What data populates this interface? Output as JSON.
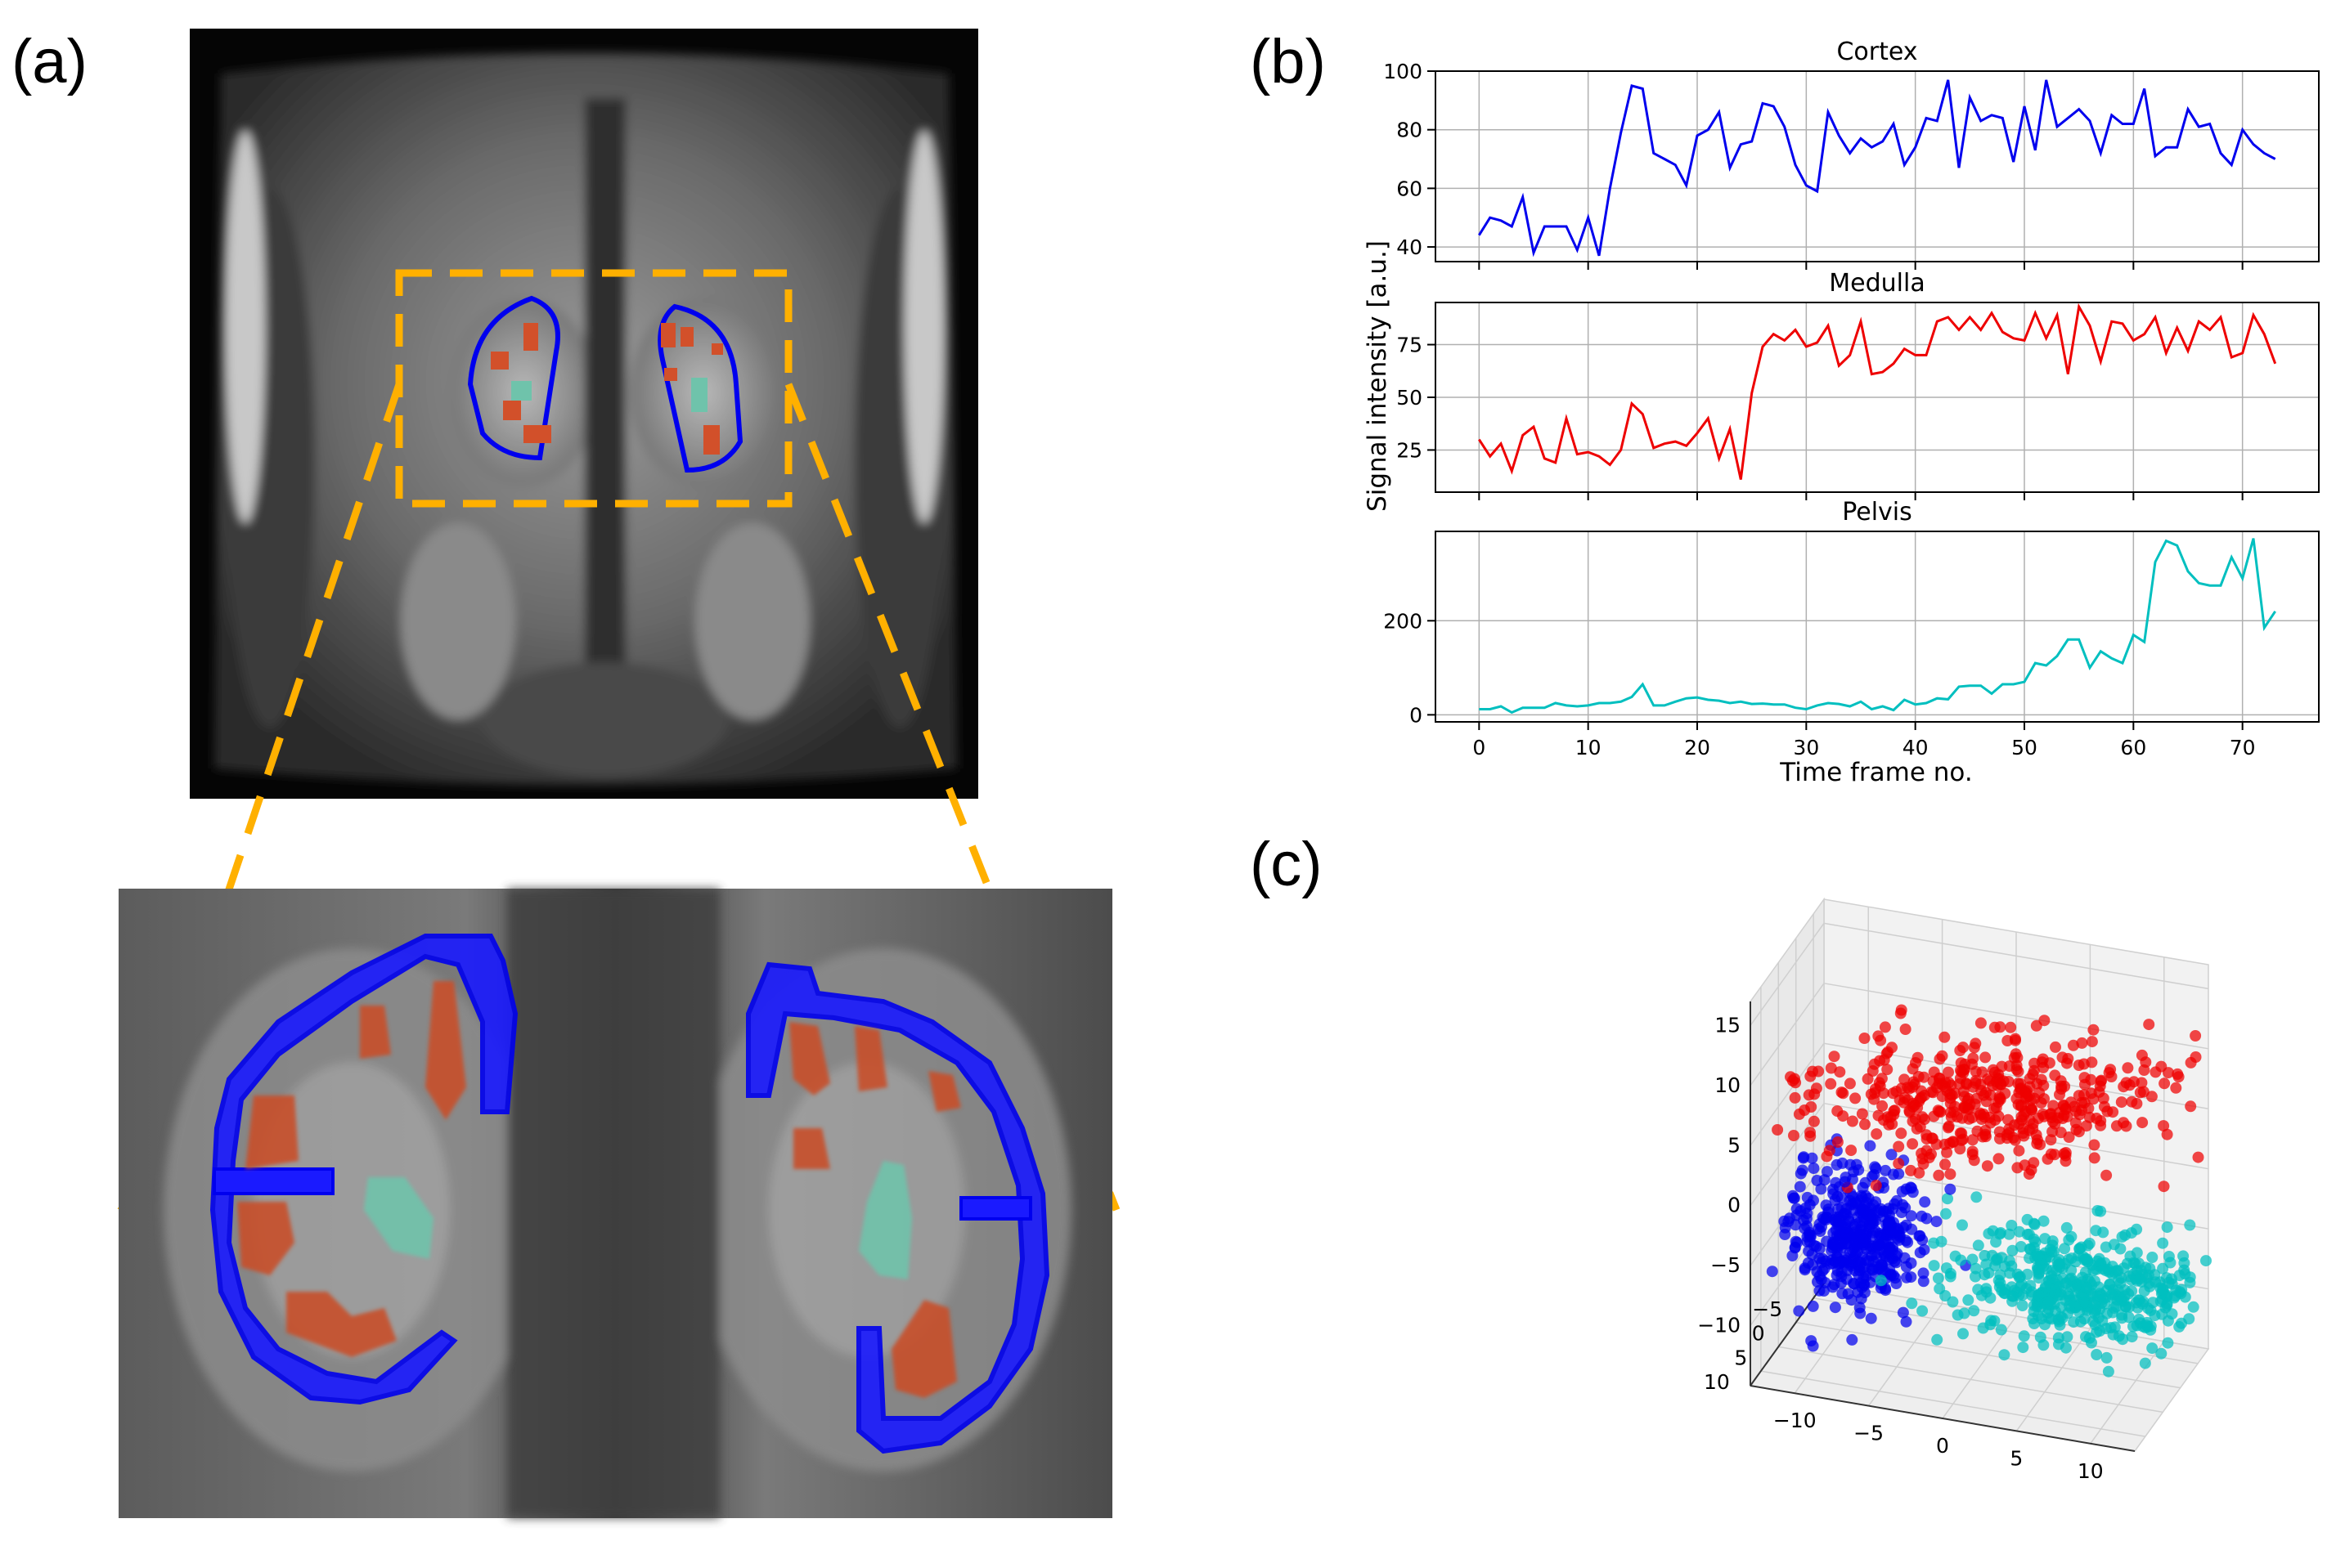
{
  "figure": {
    "panel_a_label": "(a)",
    "panel_b_label": "(b)",
    "panel_c_label": "(c)"
  },
  "colors": {
    "cortex": "#0000ee",
    "medulla": "#ee0000",
    "pelvis": "#00bfbf",
    "roi_box": "#ffb000",
    "mask_orange": "#d2502a",
    "mask_teal": "#6fc3ab"
  },
  "chart_data": [
    {
      "type": "line",
      "panel": "b",
      "xlabel": "Time frame no.",
      "ylabel": "Signal intensity [a.u.]",
      "xlim": [
        -4,
        77
      ],
      "xticks": [
        0,
        10,
        20,
        30,
        40,
        50,
        60,
        70
      ],
      "x_start": 0,
      "grid": true,
      "series": [
        {
          "name": "Cortex",
          "title": "Cortex",
          "color": "#0000ee",
          "ylim": [
            35,
            100
          ],
          "yticks": [
            40,
            60,
            80,
            100
          ],
          "values": [
            44,
            50,
            49,
            47,
            57,
            38,
            47,
            47,
            47,
            39,
            50,
            37,
            60,
            79,
            95,
            94,
            72,
            70,
            68,
            61,
            78,
            80,
            86,
            67,
            75,
            76,
            89,
            88,
            81,
            68,
            61,
            59,
            86,
            78,
            72,
            77,
            74,
            76,
            82,
            68,
            74,
            84,
            83,
            97,
            67,
            91,
            83,
            85,
            84,
            69,
            88,
            73,
            97,
            81,
            84,
            87,
            83,
            72,
            85,
            82,
            82,
            94,
            71,
            74,
            74,
            87,
            81,
            82,
            72,
            68,
            80,
            75,
            72,
            70
          ]
        },
        {
          "name": "Medulla",
          "title": "Medulla",
          "color": "#ee0000",
          "ylim": [
            5,
            95
          ],
          "yticks": [
            25,
            50,
            75
          ],
          "values": [
            30,
            22,
            28,
            15,
            32,
            36,
            21,
            19,
            40,
            23,
            24,
            22,
            18,
            25,
            47,
            42,
            26,
            28,
            29,
            27,
            33,
            40,
            21,
            35,
            11,
            52,
            74,
            80,
            77,
            82,
            74,
            76,
            84,
            65,
            70,
            86,
            61,
            62,
            66,
            73,
            70,
            70,
            86,
            88,
            82,
            88,
            82,
            90,
            81,
            78,
            77,
            90,
            78,
            89,
            61,
            93,
            84,
            67,
            86,
            85,
            77,
            80,
            88,
            71,
            83,
            72,
            86,
            82,
            88,
            69,
            71,
            89,
            80,
            66
          ]
        },
        {
          "name": "Pelvis",
          "title": "Pelvis",
          "color": "#00bfbf",
          "ylim": [
            -15,
            390
          ],
          "yticks": [
            0,
            200
          ],
          "values": [
            12,
            12,
            18,
            5,
            15,
            15,
            15,
            25,
            20,
            18,
            20,
            25,
            25,
            28,
            38,
            65,
            20,
            20,
            28,
            35,
            37,
            32,
            30,
            25,
            28,
            23,
            24,
            22,
            22,
            15,
            12,
            20,
            25,
            23,
            18,
            28,
            12,
            18,
            10,
            32,
            22,
            25,
            35,
            33,
            60,
            62,
            62,
            45,
            65,
            65,
            70,
            110,
            105,
            125,
            160,
            160,
            100,
            135,
            120,
            110,
            170,
            155,
            325,
            370,
            360,
            305,
            280,
            275,
            275,
            335,
            290,
            375,
            185,
            220
          ]
        }
      ]
    },
    {
      "type": "scatter",
      "panel": "c",
      "projection": "3d",
      "x_ticks": [
        "−10",
        "−5",
        "0",
        "5",
        "10"
      ],
      "y_ticks": [
        "−5",
        "0",
        "5",
        "10"
      ],
      "z_ticks": [
        "−10",
        "−5",
        "0",
        "5",
        "10",
        "15"
      ],
      "xlim": [
        -13,
        13
      ],
      "ylim": [
        -8,
        13
      ],
      "zlim": [
        -15,
        17
      ],
      "clusters": [
        {
          "name": "Cortex",
          "color": "#0000ee",
          "center": [
            -9,
            0,
            -7
          ],
          "spread": [
            2.2,
            3,
            2.6
          ],
          "count": 430
        },
        {
          "name": "Medulla",
          "color": "#ee0000",
          "center": [
            0,
            0,
            6
          ],
          "spread": [
            6,
            4,
            2.2
          ],
          "count": 460
        },
        {
          "name": "Pelvis",
          "color": "#00bfbf",
          "center": [
            6,
            0,
            -8
          ],
          "spread": [
            4,
            4,
            1.6
          ],
          "count": 470
        }
      ]
    }
  ]
}
